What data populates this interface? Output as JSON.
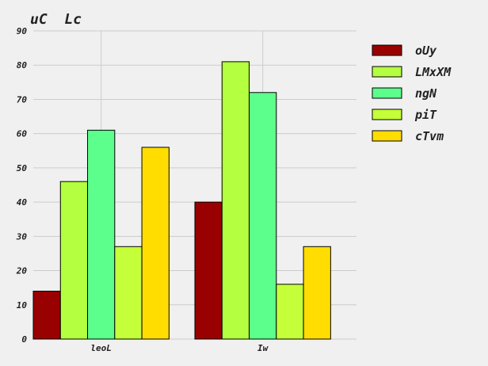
{
  "chart_data": {
    "type": "bar",
    "title": "uC  Lc",
    "xlabel": "",
    "ylabel": "",
    "categories": [
      "leoL",
      "Iw"
    ],
    "ylim": [
      0,
      90
    ],
    "yticks": [
      0,
      10,
      20,
      30,
      40,
      50,
      60,
      70,
      80,
      90
    ],
    "grid": true,
    "legend_position": "right",
    "series": [
      {
        "name": "oUy",
        "color": "#990000",
        "values": [
          14,
          40
        ]
      },
      {
        "name": "LMxXM",
        "color": "#b3ff40",
        "values": [
          46,
          81
        ]
      },
      {
        "name": "ngN",
        "color": "#5cff8c",
        "values": [
          61,
          72
        ]
      },
      {
        "name": "piT",
        "color": "#c5ff3a",
        "values": [
          27,
          16
        ]
      },
      {
        "name": "cTvm",
        "color": "#ffdd00",
        "values": [
          56,
          27
        ]
      }
    ]
  }
}
